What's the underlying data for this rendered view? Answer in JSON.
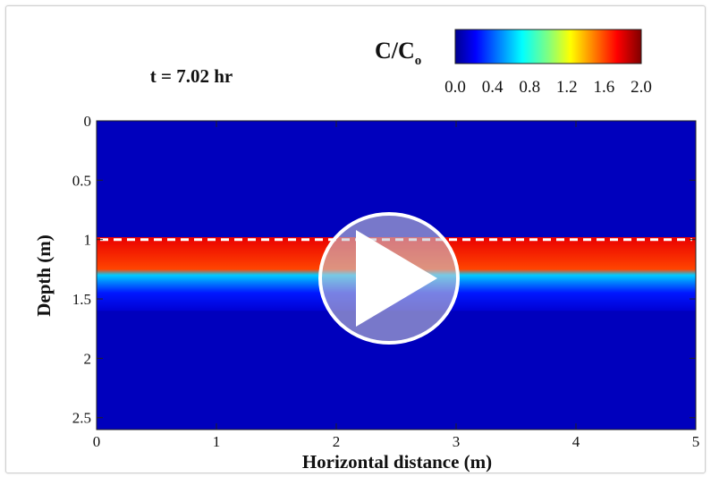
{
  "chart_data": {
    "type": "heatmap",
    "time_label": "t = 7.02 hr",
    "xlabel": "Horizontal distance (m)",
    "ylabel": "Depth (m)",
    "xlim": [
      0,
      5
    ],
    "ylim": [
      0,
      2.6
    ],
    "y_inverted": true,
    "x_ticks": [
      0,
      1,
      2,
      3,
      4,
      5
    ],
    "y_ticks": [
      0,
      0.5,
      1,
      1.5,
      2,
      2.5
    ],
    "x_tick_labels": [
      "0",
      "1",
      "2",
      "3",
      "4",
      "5"
    ],
    "y_tick_labels": [
      "0",
      "0.5",
      "1",
      "1.5",
      "2",
      "2.5"
    ],
    "colorbar": {
      "label_main": "C/C",
      "label_sub": "o",
      "range": [
        0,
        2.0
      ],
      "tick_labels": [
        "0.0",
        "0.4",
        "0.8",
        "1.2",
        "1.6",
        "2.0"
      ],
      "colormap": "jet"
    },
    "background_value": 0.0,
    "dashed_line_depth": 1.0,
    "profile": [
      {
        "depth": 0.98,
        "value": 1.9
      },
      {
        "depth": 1.25,
        "value": 1.7
      },
      {
        "depth": 1.3,
        "value": 0.6
      },
      {
        "depth": 1.45,
        "value": 0.2
      },
      {
        "depth": 1.6,
        "value": 0.05
      }
    ]
  },
  "overlay": {
    "play_button_icon": "play-icon"
  }
}
